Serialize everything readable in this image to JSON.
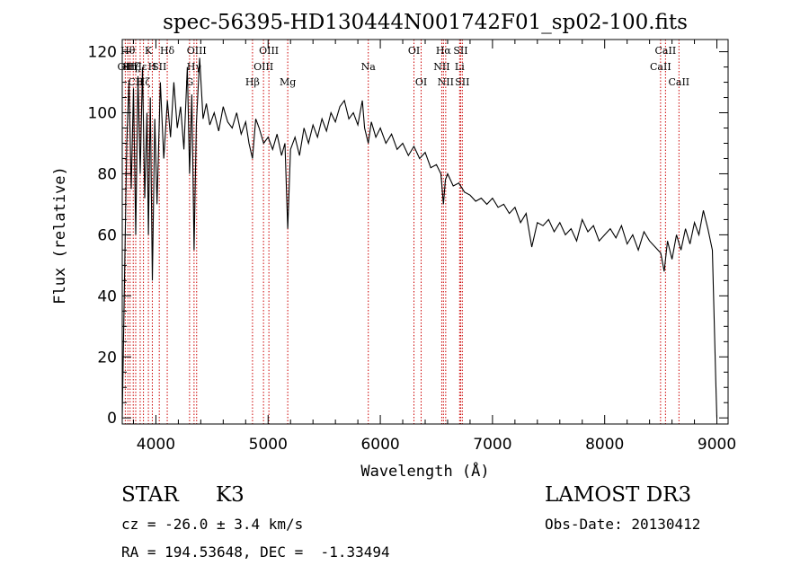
{
  "chart_data": {
    "type": "line",
    "title": "spec-56395-HD130444N001742F01_sp02-100.fits",
    "xlabel": "Wavelength (Å)",
    "ylabel": "Flux (relative)",
    "xlim": [
      3700,
      9100
    ],
    "ylim": [
      -2,
      124
    ],
    "x_ticks": [
      4000,
      5000,
      6000,
      7000,
      8000,
      9000
    ],
    "y_ticks": [
      0,
      20,
      40,
      60,
      80,
      100,
      120
    ],
    "grid": false,
    "legend": "none",
    "line_color": "#000000",
    "marker_color": "#cc0000",
    "series": [
      {
        "x": [
          3700,
          3720,
          3740,
          3760,
          3780,
          3800,
          3820,
          3840,
          3860,
          3880,
          3900,
          3920,
          3933,
          3950,
          3968,
          3990,
          4010,
          4040,
          4070,
          4102,
          4130,
          4160,
          4190,
          4220,
          4250,
          4280,
          4300,
          4320,
          4340,
          4360,
          4390,
          4420,
          4450,
          4480,
          4520,
          4560,
          4600,
          4640,
          4680,
          4720,
          4760,
          4800,
          4830,
          4861,
          4890,
          4920,
          4960,
          5000,
          5040,
          5080,
          5120,
          5150,
          5175,
          5200,
          5240,
          5280,
          5320,
          5360,
          5400,
          5440,
          5480,
          5520,
          5560,
          5600,
          5640,
          5680,
          5720,
          5760,
          5800,
          5840,
          5860,
          5893,
          5920,
          5960,
          6000,
          6050,
          6100,
          6150,
          6200,
          6250,
          6300,
          6350,
          6400,
          6450,
          6500,
          6540,
          6563,
          6580,
          6600,
          6650,
          6700,
          6750,
          6800,
          6850,
          6900,
          6950,
          7000,
          7050,
          7100,
          7150,
          7200,
          7250,
          7300,
          7350,
          7400,
          7450,
          7500,
          7550,
          7600,
          7650,
          7700,
          7750,
          7800,
          7850,
          7900,
          7950,
          8000,
          8050,
          8100,
          8150,
          8200,
          8250,
          8300,
          8350,
          8400,
          8450,
          8500,
          8530,
          8560,
          8600,
          8640,
          8680,
          8720,
          8760,
          8800,
          8840,
          8880,
          8920,
          8960,
          8990,
          9000
        ],
        "y": [
          0,
          45,
          90,
          110,
          75,
          108,
          60,
          112,
          80,
          115,
          72,
          100,
          60,
          105,
          45,
          98,
          70,
          110,
          85,
          104,
          92,
          110,
          95,
          102,
          88,
          115,
          80,
          106,
          55,
          96,
          118,
          98,
          103,
          96,
          100,
          94,
          102,
          97,
          95,
          100,
          93,
          97,
          90,
          85,
          98,
          95,
          90,
          92,
          88,
          93,
          86,
          90,
          62,
          88,
          92,
          86,
          95,
          90,
          96,
          92,
          98,
          94,
          100,
          97,
          102,
          104,
          98,
          100,
          96,
          104,
          95,
          90,
          97,
          92,
          95,
          90,
          93,
          88,
          90,
          86,
          89,
          85,
          87,
          82,
          83,
          80,
          70,
          78,
          80,
          76,
          77,
          74,
          73,
          71,
          72,
          70,
          72,
          69,
          70,
          67,
          69,
          64,
          67,
          56,
          64,
          63,
          65,
          61,
          64,
          60,
          62,
          58,
          65,
          61,
          63,
          58,
          60,
          62,
          59,
          63,
          57,
          60,
          55,
          61,
          58,
          56,
          54,
          48,
          58,
          52,
          60,
          55,
          62,
          57,
          64,
          60,
          68,
          62,
          55,
          12,
          0
        ]
      }
    ],
    "line_markers": [
      {
        "x": 3727,
        "label": "OII",
        "row": 2
      },
      {
        "x": 3750,
        "label": "Hθ",
        "row": 1
      },
      {
        "x": 3770,
        "label": "Hη",
        "row": 2
      },
      {
        "x": 3798,
        "label": "Hζ",
        "row": 2
      },
      {
        "x": 3820,
        "label": "CII",
        "row": 3
      },
      {
        "x": 3860,
        "label": "Hε",
        "row": 2
      },
      {
        "x": 3889,
        "label": "Hζ",
        "row": 3
      },
      {
        "x": 3933,
        "label": "K",
        "row": 1
      },
      {
        "x": 3968,
        "label": "H",
        "row": 2
      },
      {
        "x": 4030,
        "label": "SII",
        "row": 2
      },
      {
        "x": 4101,
        "label": "Hδ",
        "row": 1
      },
      {
        "x": 4300,
        "label": "G",
        "row": 3
      },
      {
        "x": 4340,
        "label": "Hγ",
        "row": 2
      },
      {
        "x": 4363,
        "label": "OIII",
        "row": 1
      },
      {
        "x": 4861,
        "label": "Hβ",
        "row": 3
      },
      {
        "x": 4959,
        "label": "OIII",
        "row": 2
      },
      {
        "x": 5007,
        "label": "OIII",
        "row": 1
      },
      {
        "x": 5175,
        "label": "Mg",
        "row": 3
      },
      {
        "x": 5893,
        "label": "Na",
        "row": 2
      },
      {
        "x": 6300,
        "label": "OI",
        "row": 1
      },
      {
        "x": 6364,
        "label": "OI",
        "row": 3
      },
      {
        "x": 6548,
        "label": "NII",
        "row": 2
      },
      {
        "x": 6563,
        "label": "Hα",
        "row": 1
      },
      {
        "x": 6583,
        "label": "NII",
        "row": 3
      },
      {
        "x": 6707,
        "label": "Li",
        "row": 2
      },
      {
        "x": 6716,
        "label": "SII",
        "row": 1
      },
      {
        "x": 6731,
        "label": "SII",
        "row": 3
      },
      {
        "x": 8498,
        "label": "CaII",
        "row": 2
      },
      {
        "x": 8542,
        "label": "CaII",
        "row": 1
      },
      {
        "x": 8662,
        "label": "CaII",
        "row": 3
      }
    ]
  },
  "info": {
    "object_type": "STAR",
    "subclass": "K3",
    "survey": "LAMOST DR3",
    "cz_line": "cz = -26.0 ± 3.4 km/s",
    "obs_date": "Obs-Date: 20130412",
    "coords_line": "RA = 194.53648, DEC =  -1.33494"
  }
}
